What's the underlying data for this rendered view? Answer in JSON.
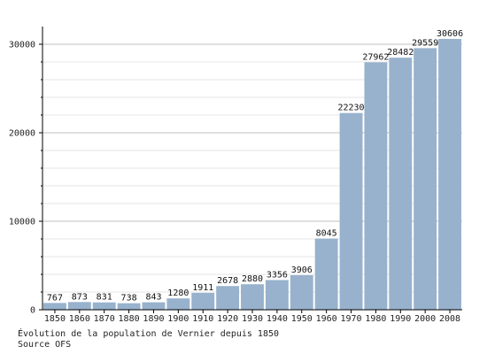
{
  "chart_data": {
    "type": "bar",
    "categories": [
      "1850",
      "1860",
      "1870",
      "1880",
      "1890",
      "1900",
      "1910",
      "1920",
      "1930",
      "1940",
      "1950",
      "1960",
      "1970",
      "1980",
      "1990",
      "2000",
      "2008"
    ],
    "values": [
      767,
      873,
      831,
      738,
      843,
      1280,
      1911,
      2678,
      2880,
      3356,
      3906,
      8045,
      22230,
      27962,
      28482,
      29559,
      30606
    ],
    "ylim": [
      0,
      32000
    ],
    "yticks": [
      0,
      10000,
      20000,
      30000
    ],
    "grid": true,
    "bar_color": "#98b2cd",
    "grid_color": "#bfbfbf",
    "minor_grid_color": "#e6e6e6"
  },
  "caption": {
    "line1": "Évolution de la population de Vernier depuis 1850",
    "line2": "Source OFS"
  }
}
